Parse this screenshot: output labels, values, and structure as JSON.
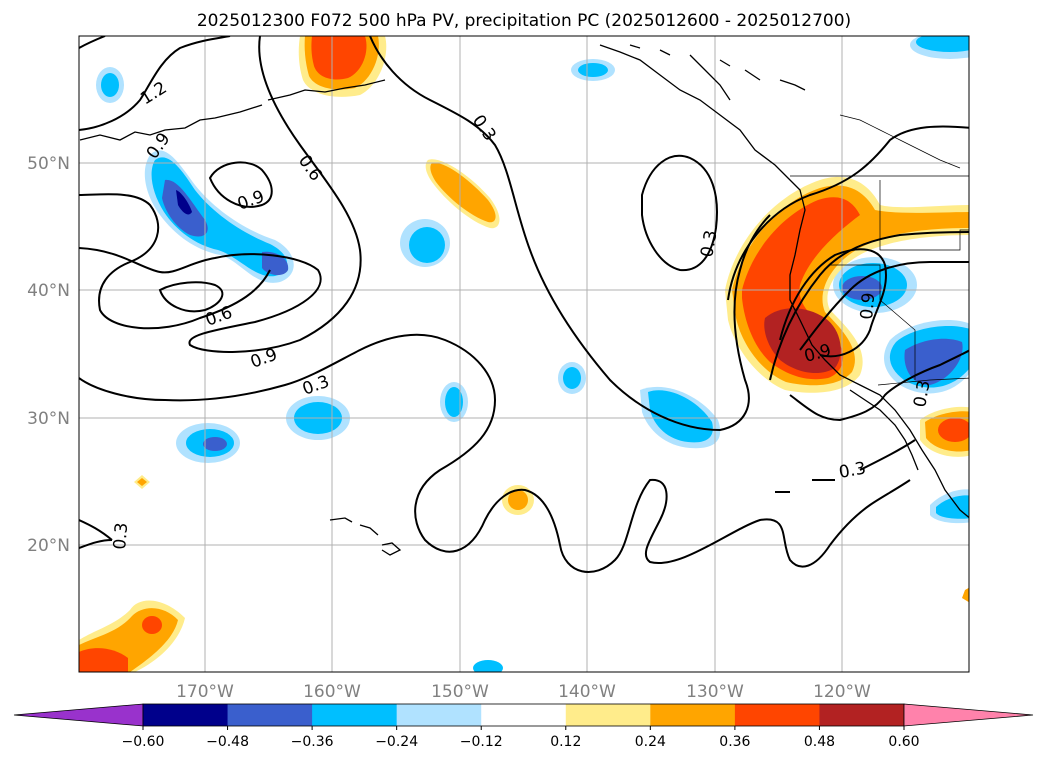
{
  "title": "2025012300 F072 500 hPa PV, precipitation PC (2025012600 - 2025012700)",
  "lon_labels": [
    "170°W",
    "160°W",
    "150°W",
    "140°W",
    "130°W",
    "120°W"
  ],
  "lat_labels": [
    "50°N",
    "40°N",
    "30°N",
    "20°N"
  ],
  "colorbar": {
    "colors": [
      "#9932cc",
      "#00008b",
      "#3a5fcd",
      "#00bfff",
      "#b0e2ff",
      "#ffffff",
      "#ffec8b",
      "#ffa500",
      "#ff4500",
      "#b22222",
      "#ff82ab"
    ],
    "tick_labels": [
      "−0.60",
      "−0.48",
      "−0.36",
      "−0.24",
      "−0.12",
      "0.12",
      "0.24",
      "0.36",
      "0.48",
      "0.60"
    ]
  },
  "contour_labels": {
    "c1": "1.2",
    "c2": "0.9",
    "c3": "0.9",
    "c4": "0.6",
    "c5": "0.3",
    "c6": "0.6",
    "c7": "0.9",
    "c8": "0.3",
    "c9": "0.3",
    "c10": "0.9",
    "c11": "0.9",
    "c12": "0.3",
    "c13": "0.3",
    "c14": "0.3"
  }
}
